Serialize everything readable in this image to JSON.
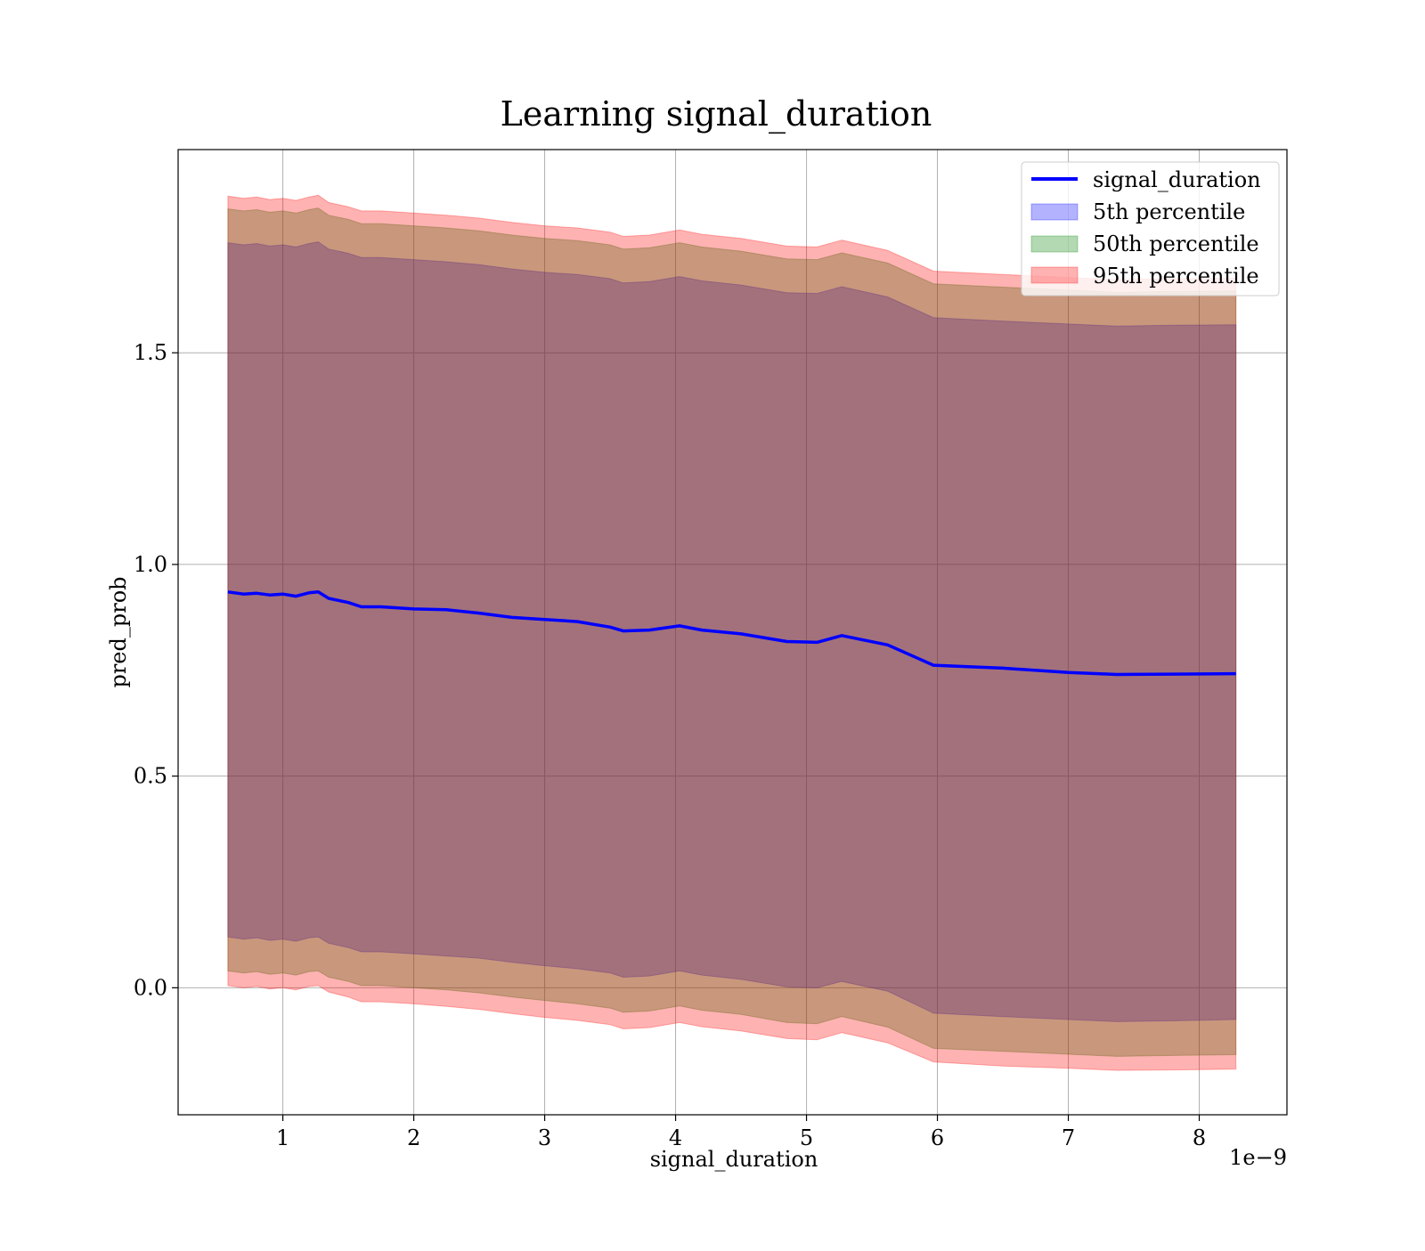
{
  "chart_data": {
    "type": "area",
    "title": "Learning signal_duration",
    "xlabel": "signal_duration",
    "ylabel": "pred_prob",
    "x_offset_label": "1e−9",
    "xlim": [
      0.2,
      8.67
    ],
    "ylim": [
      -0.3,
      1.98
    ],
    "x_ticks": [
      1,
      2,
      3,
      4,
      5,
      6,
      7,
      8
    ],
    "x_tick_labels": [
      "1",
      "2",
      "3",
      "4",
      "5",
      "6",
      "7",
      "8"
    ],
    "y_ticks": [
      0.0,
      0.5,
      1.0,
      1.5
    ],
    "y_tick_labels": [
      "0.0",
      "0.5",
      "1.0",
      "1.5"
    ],
    "grid": true,
    "legend_position": "top-right",
    "x": [
      0.58,
      0.7,
      0.8,
      0.9,
      1.0,
      1.1,
      1.2,
      1.27,
      1.35,
      1.5,
      1.6,
      1.75,
      2.0,
      2.25,
      2.5,
      2.75,
      3.0,
      3.25,
      3.5,
      3.6,
      3.8,
      4.03,
      4.2,
      4.5,
      4.85,
      5.08,
      5.27,
      5.62,
      5.97,
      6.5,
      7.0,
      7.37,
      7.8,
      8.28
    ],
    "series": [
      {
        "name": "signal_duration",
        "kind": "line",
        "color": "#0000ff",
        "values": [
          0.935,
          0.93,
          0.932,
          0.928,
          0.93,
          0.925,
          0.933,
          0.935,
          0.92,
          0.91,
          0.9,
          0.9,
          0.895,
          0.893,
          0.885,
          0.875,
          0.87,
          0.865,
          0.852,
          0.843,
          0.845,
          0.855,
          0.845,
          0.836,
          0.818,
          0.816,
          0.832,
          0.81,
          0.762,
          0.755,
          0.745,
          0.74,
          0.741,
          0.742
        ]
      },
      {
        "name": "5th percentile",
        "kind": "band",
        "color": "#0000ff",
        "lower": [
          0.12,
          0.115,
          0.118,
          0.112,
          0.115,
          0.11,
          0.118,
          0.12,
          0.105,
          0.095,
          0.085,
          0.085,
          0.08,
          0.075,
          0.07,
          0.06,
          0.052,
          0.045,
          0.035,
          0.025,
          0.028,
          0.04,
          0.03,
          0.02,
          0.002,
          0.0,
          0.015,
          -0.008,
          -0.06,
          -0.068,
          -0.075,
          -0.08,
          -0.078,
          -0.075
        ],
        "upper": [
          1.76,
          1.755,
          1.758,
          1.752,
          1.755,
          1.75,
          1.758,
          1.762,
          1.745,
          1.735,
          1.725,
          1.725,
          1.72,
          1.715,
          1.708,
          1.698,
          1.69,
          1.685,
          1.675,
          1.665,
          1.668,
          1.68,
          1.67,
          1.66,
          1.642,
          1.64,
          1.656,
          1.632,
          1.583,
          1.575,
          1.568,
          1.563,
          1.565,
          1.566
        ]
      },
      {
        "name": "50th percentile",
        "kind": "band",
        "color": "#008000",
        "lower": [
          0.04,
          0.035,
          0.038,
          0.032,
          0.035,
          0.03,
          0.038,
          0.04,
          0.025,
          0.015,
          0.005,
          0.005,
          0.0,
          -0.005,
          -0.012,
          -0.022,
          -0.03,
          -0.038,
          -0.048,
          -0.058,
          -0.055,
          -0.043,
          -0.053,
          -0.063,
          -0.082,
          -0.085,
          -0.068,
          -0.093,
          -0.143,
          -0.15,
          -0.157,
          -0.162,
          -0.16,
          -0.158
        ],
        "upper": [
          1.84,
          1.835,
          1.838,
          1.832,
          1.835,
          1.83,
          1.838,
          1.842,
          1.825,
          1.815,
          1.805,
          1.805,
          1.8,
          1.795,
          1.788,
          1.778,
          1.77,
          1.765,
          1.755,
          1.745,
          1.748,
          1.76,
          1.75,
          1.74,
          1.722,
          1.72,
          1.736,
          1.712,
          1.663,
          1.655,
          1.648,
          1.643,
          1.645,
          1.646
        ]
      },
      {
        "name": "95th percentile",
        "kind": "band",
        "color": "#ff0000",
        "lower": [
          0.005,
          0.0,
          0.003,
          -0.003,
          0.0,
          -0.005,
          0.003,
          0.005,
          -0.01,
          -0.022,
          -0.033,
          -0.033,
          -0.038,
          -0.044,
          -0.051,
          -0.061,
          -0.07,
          -0.077,
          -0.087,
          -0.097,
          -0.094,
          -0.082,
          -0.092,
          -0.102,
          -0.12,
          -0.123,
          -0.106,
          -0.13,
          -0.175,
          -0.185,
          -0.19,
          -0.195,
          -0.194,
          -0.192
        ],
        "upper": [
          1.87,
          1.865,
          1.868,
          1.862,
          1.865,
          1.86,
          1.868,
          1.872,
          1.855,
          1.845,
          1.835,
          1.835,
          1.83,
          1.825,
          1.818,
          1.808,
          1.8,
          1.795,
          1.785,
          1.775,
          1.778,
          1.79,
          1.78,
          1.77,
          1.752,
          1.75,
          1.766,
          1.742,
          1.693,
          1.685,
          1.678,
          1.673,
          1.675,
          1.676
        ]
      }
    ]
  }
}
